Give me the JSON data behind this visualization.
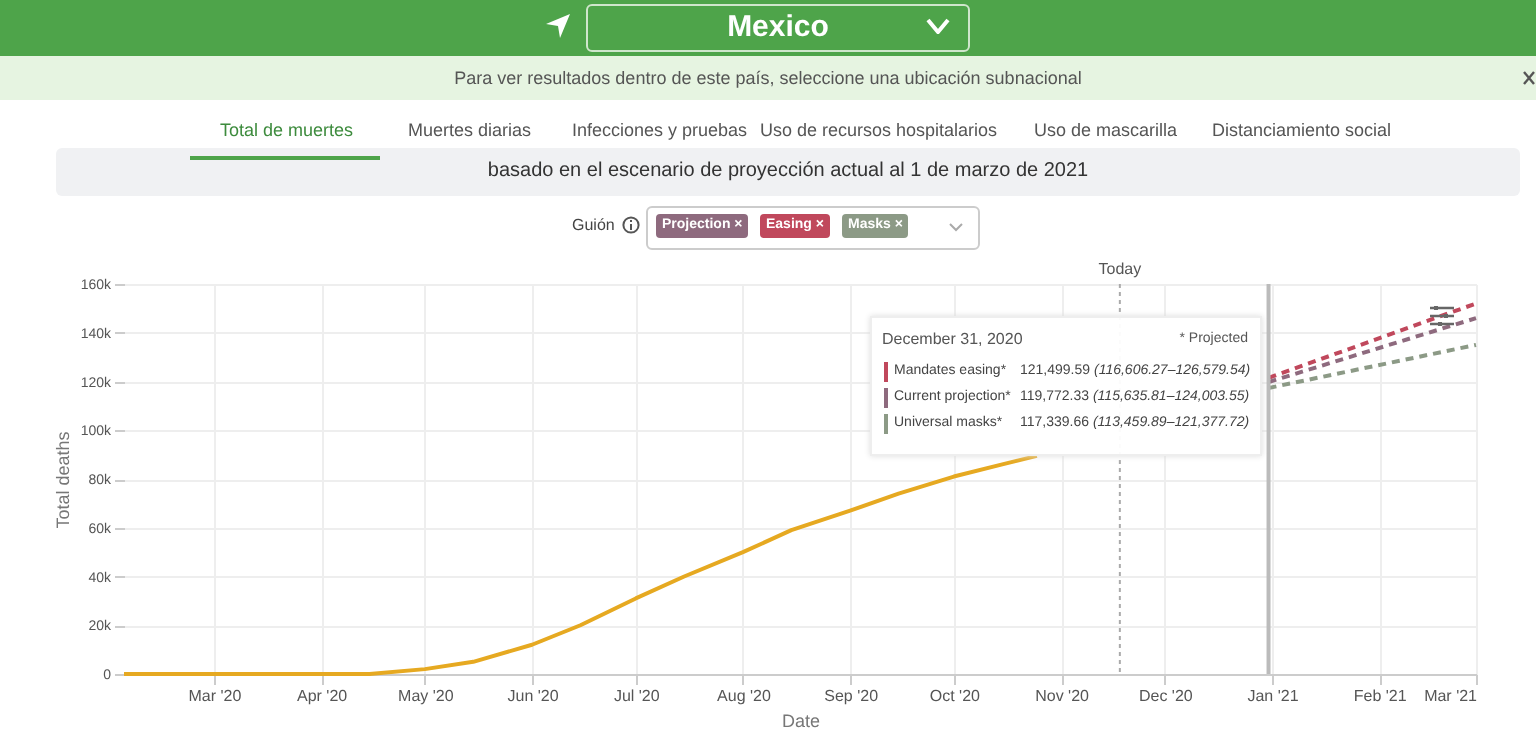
{
  "chart_data": {
    "type": "line",
    "title": "Mexico",
    "subtitle": "basado en el escenario de proyección actual al 1 de marzo de 2021",
    "xlabel": "Date",
    "ylabel": "Total deaths",
    "annotations": [
      "Para ver resultados dentro de este país, seleccione una ubicación subnacional",
      "Total de muertes",
      "Muertes diarias",
      "Infecciones y pruebas",
      "Uso de recursos hospitalarios",
      "Uso de mascarilla",
      "Distanciamiento social",
      "Guión",
      "Projection ×",
      "Easing ×",
      "Masks ×",
      "December 31, 2020",
      "* Projected",
      "121,499.59 (116,606.27–126,579.54)",
      "119,772.33 (115,635.81–124,003.55)",
      "117,339.66 (113,459.89–121,377.72)"
    ],
    "series": [
      {
        "color": "#e6a921",
        "line_style": "solid",
        "x": [
          "2020-02-04",
          "2020-03-01",
          "2020-04-01",
          "2020-04-15",
          "2020-05-01",
          "2020-05-15",
          "2020-06-01",
          "2020-06-15",
          "2020-07-01",
          "2020-07-15",
          "2020-08-01",
          "2020-08-15",
          "2020-09-01",
          "2020-09-15",
          "2020-10-01",
          "2020-10-15",
          "2020-10-25"
        ],
        "values": [
          0,
          0,
          0,
          0,
          2000,
          5000,
          12000,
          20000,
          31000,
          40000,
          50000,
          59000,
          67000,
          74000,
          81000,
          86000,
          89500
        ]
      },
      {
        "name": "Mandates easing*",
        "color": "#c0485c",
        "line_style": "dashed",
        "x": [
          "2020-12-31",
          "2021-03-01"
        ],
        "values": [
          121499.59,
          152000
        ]
      },
      {
        "name": "Current projection*",
        "color": "#8e6a7e",
        "line_style": "dashed",
        "x": [
          "2020-12-31",
          "2021-03-01"
        ],
        "values": [
          119772.33,
          146000
        ]
      },
      {
        "name": "Universal masks*",
        "color": "#8c9a86",
        "line_style": "dashed",
        "x": [
          "2020-12-31",
          "2021-03-01"
        ],
        "values": [
          117339.66,
          135000
        ]
      }
    ],
    "xlim": [
      "2020-02-04",
      "2021-03-01"
    ],
    "xticks": [
      {
        "value": "2020-03-01",
        "label": "Mar '20"
      },
      {
        "value": "2020-04-01",
        "label": "Apr '20"
      },
      {
        "value": "2020-05-01",
        "label": "May '20"
      },
      {
        "value": "2020-06-01",
        "label": "Jun '20"
      },
      {
        "value": "2020-07-01",
        "label": "Jul '20"
      },
      {
        "value": "2020-08-01",
        "label": "Aug '20"
      },
      {
        "value": "2020-09-01",
        "label": "Sep '20"
      },
      {
        "value": "2020-10-01",
        "label": "Oct '20"
      },
      {
        "value": "2020-11-01",
        "label": "Nov '20"
      },
      {
        "value": "2020-12-01",
        "label": "Dec '20"
      },
      {
        "value": "2021-01-01",
        "label": "Jan '21"
      },
      {
        "value": "2021-02-01",
        "label": "Feb '21"
      },
      {
        "value": "2021-03-01",
        "label": "Mar '21"
      }
    ],
    "ylim": [
      0,
      160000
    ],
    "yticks": [
      {
        "value": 0,
        "label": "0"
      },
      {
        "value": 20000,
        "label": "20k"
      },
      {
        "value": 40000,
        "label": "40k"
      },
      {
        "value": 60000,
        "label": "60k"
      },
      {
        "value": 80000,
        "label": "80k"
      },
      {
        "value": 100000,
        "label": "100k"
      },
      {
        "value": 120000,
        "label": "120k"
      },
      {
        "value": 140000,
        "label": "140k"
      },
      {
        "value": 160000,
        "label": "160k"
      }
    ],
    "ref_lines": [
      {
        "axis": "x",
        "value": "2020-11-18",
        "label": "Today",
        "color": "#aaaaaa",
        "line_style": "dotted"
      },
      {
        "axis": "x",
        "value": "2020-12-31",
        "color": "#bbbbbb",
        "line_style": "solid"
      }
    ],
    "grid": true,
    "legend": "top right"
  }
}
